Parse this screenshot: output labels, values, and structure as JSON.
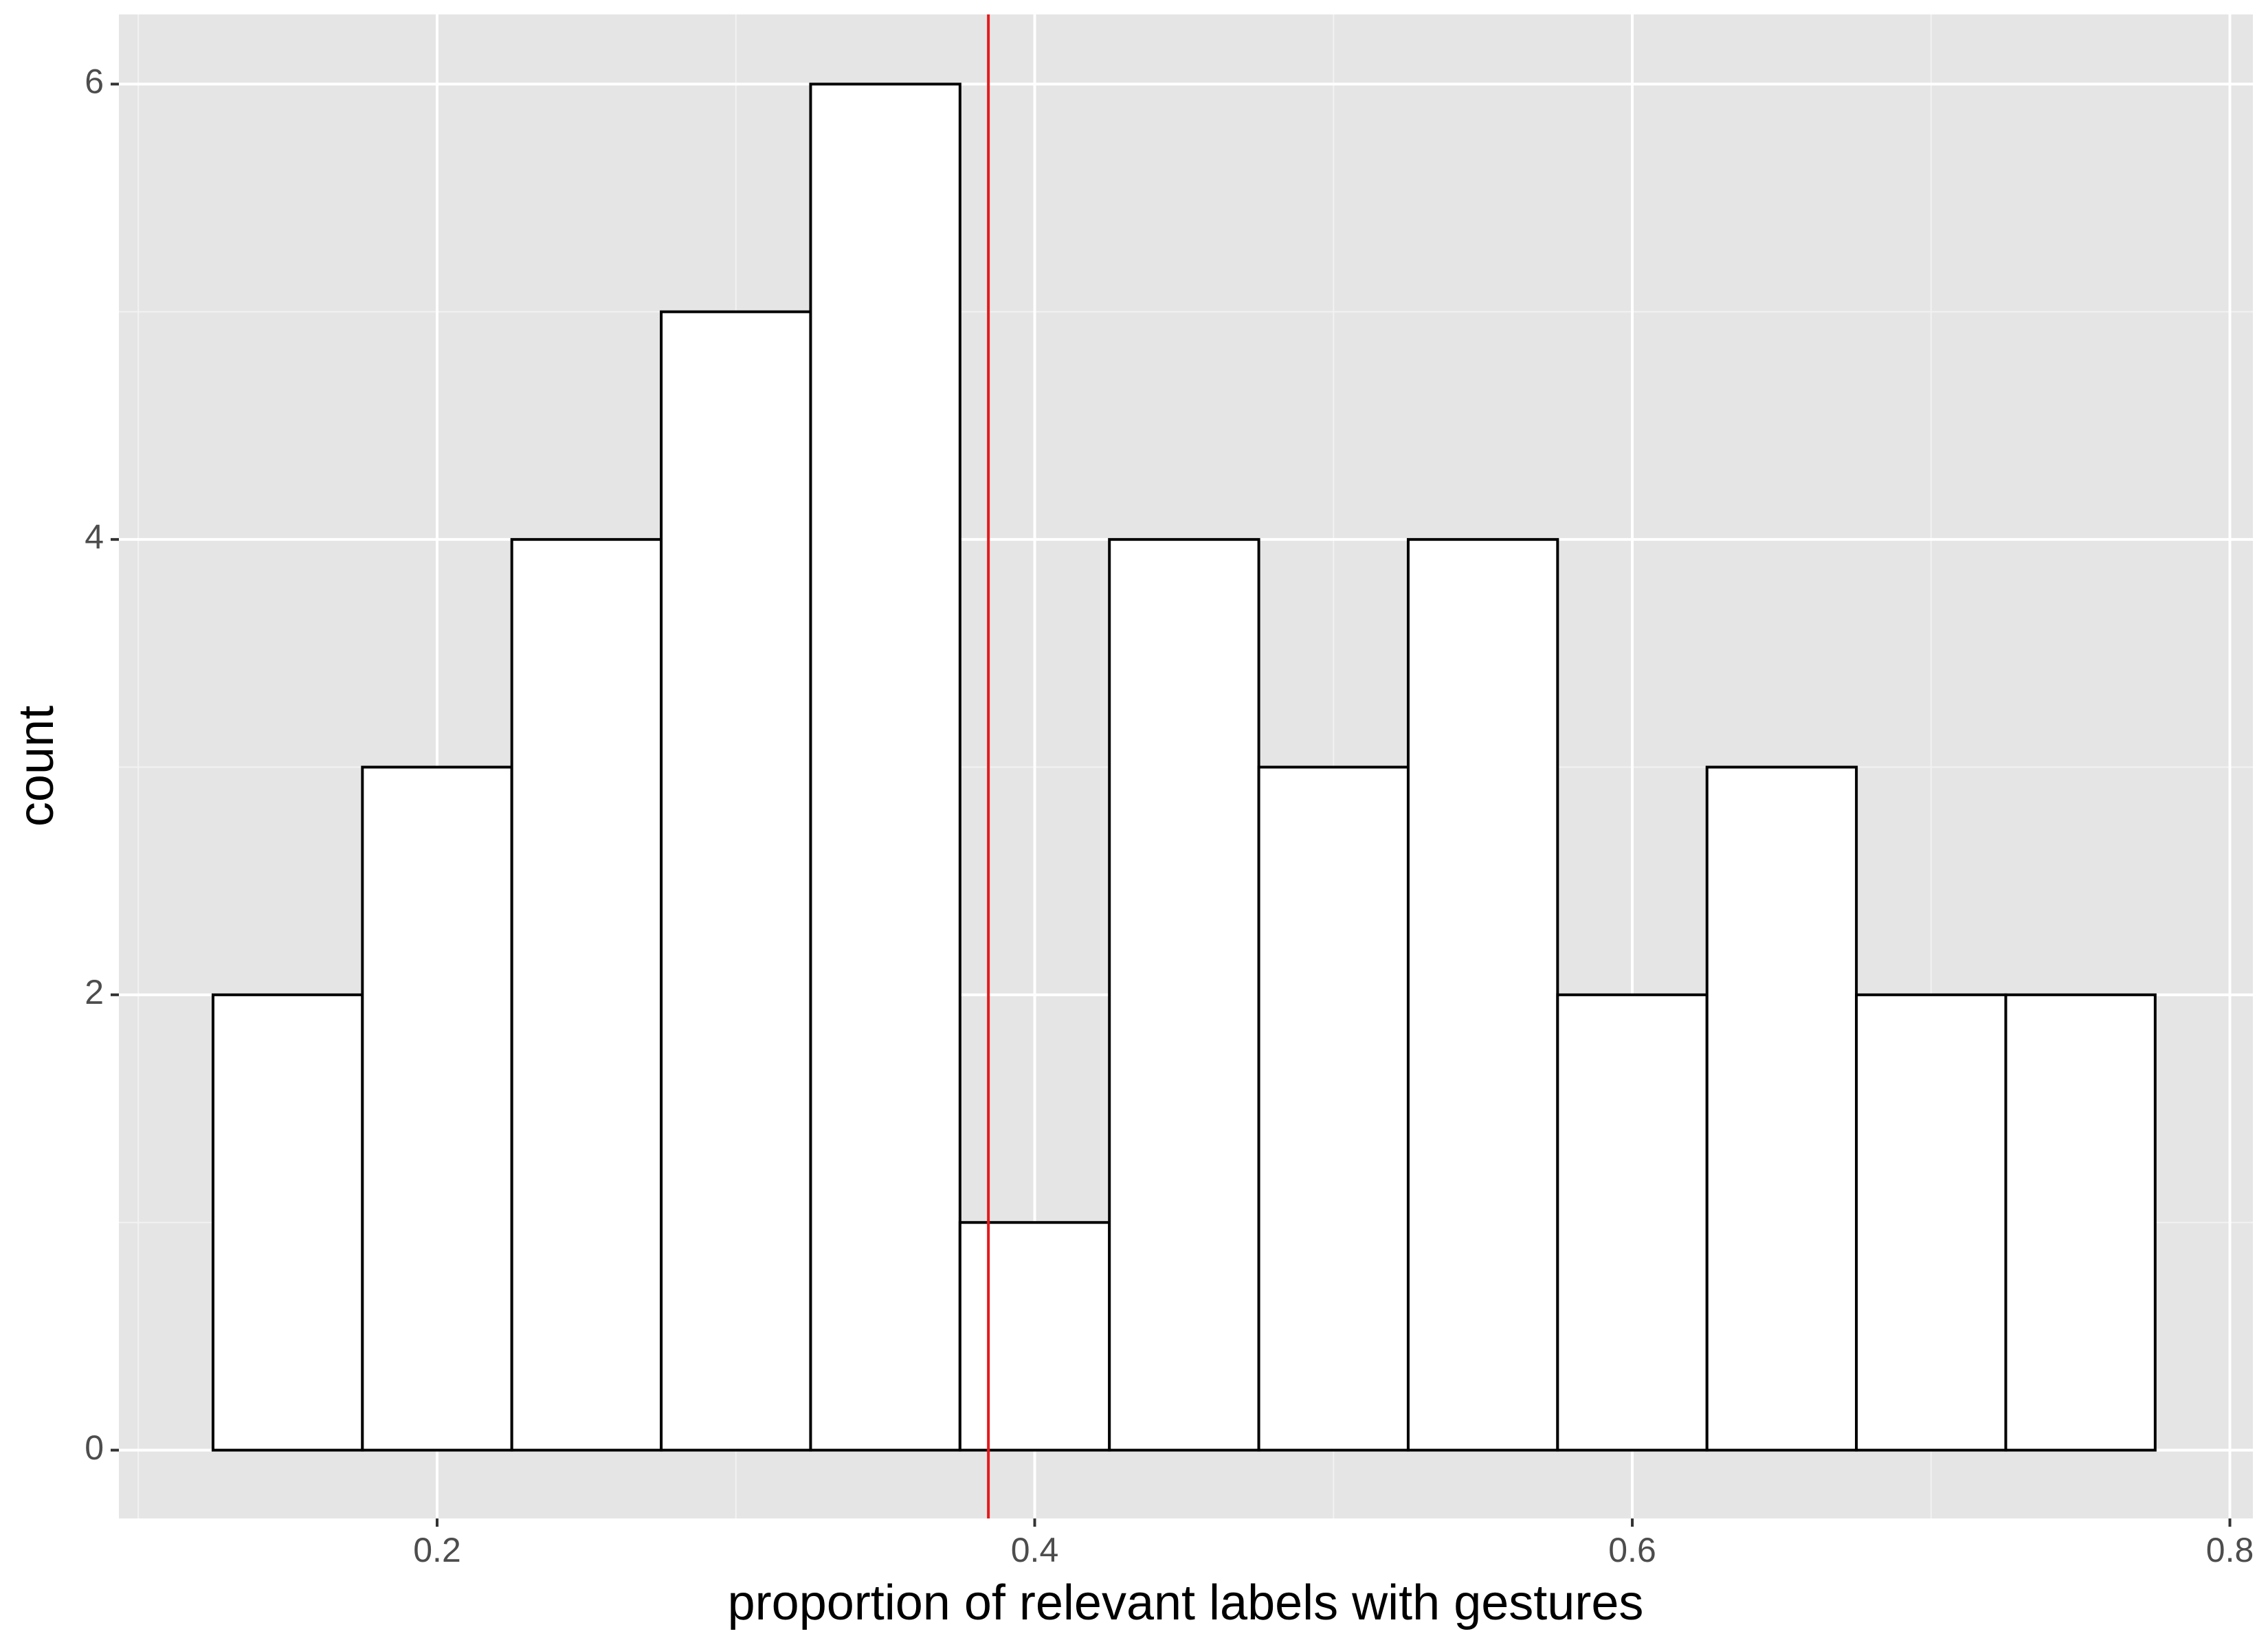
{
  "chart_data": {
    "type": "histogram",
    "x_label": "proportion of relevant labels with gestures",
    "y_label": "count",
    "bins": [
      0.125,
      0.175,
      0.225,
      0.275,
      0.325,
      0.375,
      0.425,
      0.475,
      0.525,
      0.575,
      0.625,
      0.675,
      0.725,
      0.775
    ],
    "values": [
      2,
      3,
      4,
      5,
      6,
      1,
      4,
      3,
      4,
      2,
      3,
      2,
      2
    ],
    "color": "#ffffff",
    "edgecolor": "#000000",
    "vline": {
      "x": 0.3845,
      "color": "#e41a1c"
    },
    "xlim": [
      0.0935,
      0.8077
    ],
    "ylim": [
      -0.3,
      6.306
    ],
    "xticks": [
      0.2,
      0.4,
      0.6,
      0.8
    ],
    "yticks": [
      0,
      2,
      4,
      6
    ],
    "grid": true
  }
}
